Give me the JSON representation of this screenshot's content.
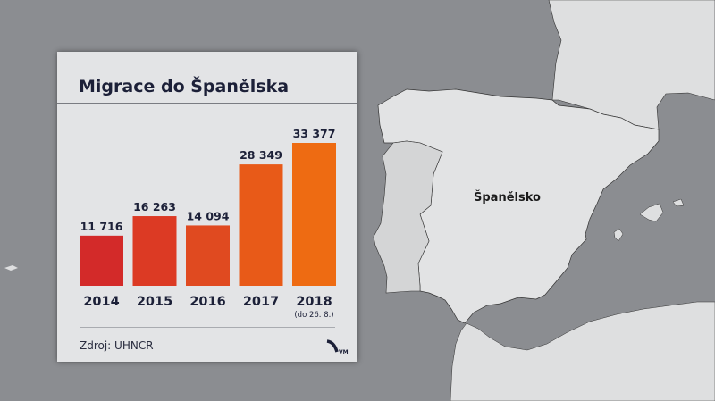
{
  "map": {
    "country_label": "Španělsko",
    "sea_color": "#8b8d91",
    "land_color": "#dedfe0"
  },
  "panel": {
    "title": "Migrace do Španělska",
    "source": "Zdroj: UHNCR",
    "logo": "VM"
  },
  "chart_data": {
    "type": "bar",
    "title": "Migrace do Španělska",
    "categories": [
      "2014",
      "2015",
      "2016",
      "2017",
      "2018"
    ],
    "values": [
      11716,
      16263,
      14094,
      28349,
      33377
    ],
    "value_labels": [
      "11 716",
      "16 263",
      "14 094",
      "28 349",
      "33 377"
    ],
    "category_notes": [
      "",
      "",
      "",
      "",
      "(do 26. 8.)"
    ],
    "colors": [
      "#d32a29",
      "#dc3a24",
      "#e04a20",
      "#e85a18",
      "#ee6b12"
    ],
    "ylim": [
      0,
      33377
    ],
    "grid": false,
    "xlabel": "",
    "ylabel": ""
  }
}
